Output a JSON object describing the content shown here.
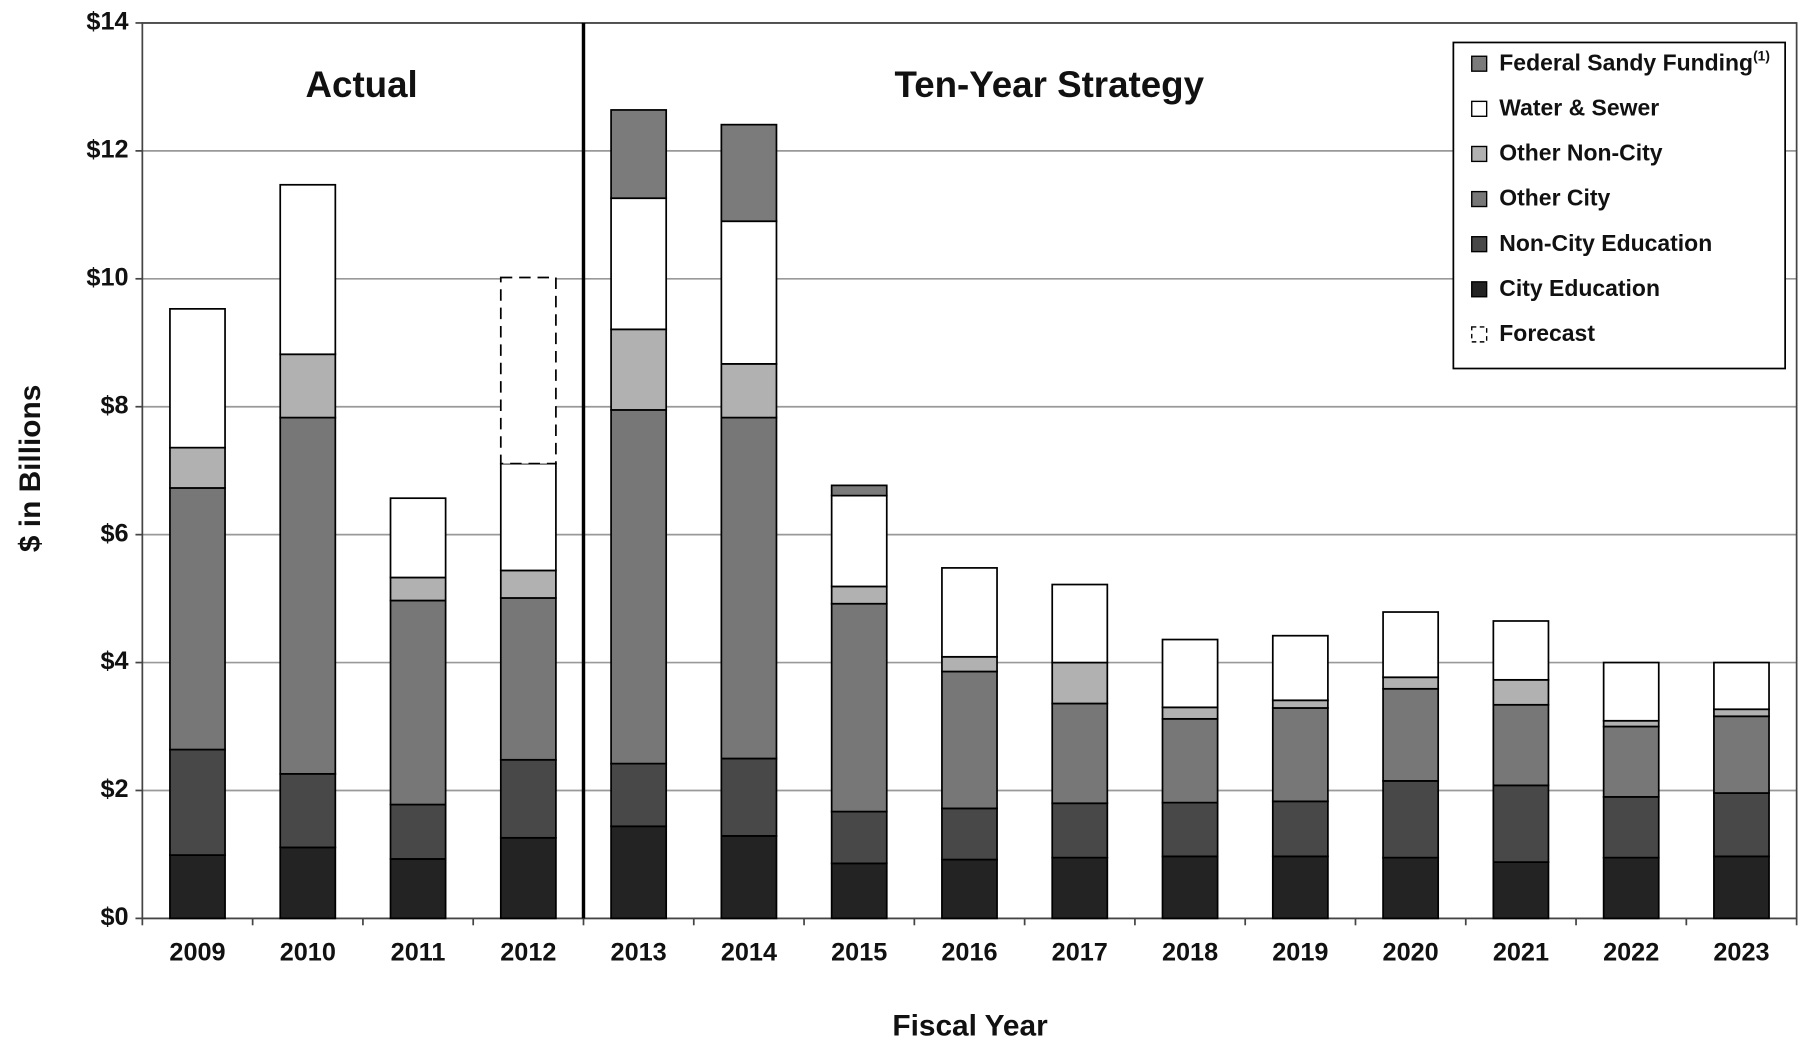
{
  "chart_data": {
    "type": "stacked_bar",
    "x_axis_label": "Fiscal Year",
    "y_axis_label": "$ in Billions",
    "annotations": [
      "Actual",
      "Ten-Year Strategy"
    ],
    "legend_footnote_mark": "(1)",
    "categories": [
      "2009",
      "2010",
      "2011",
      "2012",
      "2013",
      "2014",
      "2015",
      "2016",
      "2017",
      "2018",
      "2019",
      "2020",
      "2021",
      "2022",
      "2023"
    ],
    "series": [
      {
        "name": "City Education",
        "color": "#232323",
        "values": [
          0.99,
          1.11,
          0.93,
          1.26,
          1.44,
          1.29,
          0.86,
          0.92,
          0.95,
          0.97,
          0.97,
          0.95,
          0.88,
          0.95,
          0.97
        ]
      },
      {
        "name": "Non-City Education",
        "color": "#484848",
        "values": [
          1.65,
          1.15,
          0.85,
          1.22,
          0.98,
          1.21,
          0.81,
          0.8,
          0.85,
          0.84,
          0.86,
          1.2,
          1.2,
          0.95,
          0.99
        ]
      },
      {
        "name": "Other City",
        "color": "#777777",
        "values": [
          4.09,
          5.57,
          3.19,
          2.53,
          5.53,
          5.33,
          3.25,
          2.14,
          1.56,
          1.31,
          1.46,
          1.44,
          1.26,
          1.1,
          1.2
        ]
      },
      {
        "name": "Other Non-City",
        "color": "#b1b1b1",
        "values": [
          0.63,
          0.99,
          0.36,
          0.43,
          1.26,
          0.84,
          0.27,
          0.23,
          0.64,
          0.18,
          0.12,
          0.18,
          0.39,
          0.09,
          0.11
        ]
      },
      {
        "name": "Water & Sewer",
        "color": "#ffffff",
        "values": [
          2.17,
          2.65,
          1.24,
          1.67,
          2.05,
          2.23,
          1.42,
          1.39,
          1.22,
          1.06,
          1.01,
          1.02,
          0.92,
          0.91,
          0.73
        ]
      },
      {
        "name": "Federal Sandy Funding",
        "color": "#7b7b7b",
        "values": [
          null,
          null,
          null,
          null,
          1.38,
          1.51,
          0.16,
          null,
          null,
          null,
          null,
          null,
          null,
          null,
          null
        ]
      },
      {
        "name": "Forecast",
        "color": "#ffffff",
        "dashed": true,
        "values": [
          null,
          null,
          null,
          2.91,
          null,
          null,
          null,
          null,
          null,
          null,
          null,
          null,
          null,
          null,
          null
        ]
      }
    ],
    "ylim": [
      0,
      14
    ],
    "yticks": [
      {
        "value": 0,
        "label": "$0"
      },
      {
        "value": 2,
        "label": "$2"
      },
      {
        "value": 4,
        "label": "$4"
      },
      {
        "value": 6,
        "label": "$6"
      },
      {
        "value": 8,
        "label": "$8"
      },
      {
        "value": 10,
        "label": "$10"
      },
      {
        "value": 12,
        "label": "$12"
      },
      {
        "value": 14,
        "label": "$14"
      }
    ],
    "grid": true,
    "legend_position": "upper right"
  }
}
